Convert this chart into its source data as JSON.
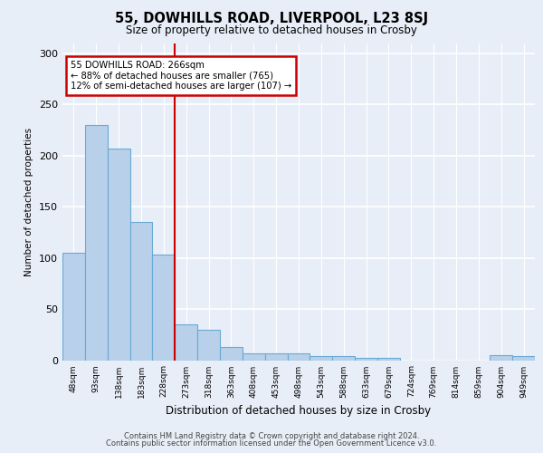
{
  "title1": "55, DOWHILLS ROAD, LIVERPOOL, L23 8SJ",
  "title2": "Size of property relative to detached houses in Crosby",
  "xlabel": "Distribution of detached houses by size in Crosby",
  "ylabel": "Number of detached properties",
  "footer1": "Contains HM Land Registry data © Crown copyright and database right 2024.",
  "footer2": "Contains public sector information licensed under the Open Government Licence v3.0.",
  "annotation_line1": "55 DOWHILLS ROAD: 266sqm",
  "annotation_line2": "← 88% of detached houses are smaller (765)",
  "annotation_line3": "12% of semi-detached houses are larger (107) →",
  "bar_labels": [
    "48sqm",
    "93sqm",
    "138sqm",
    "183sqm",
    "228sqm",
    "273sqm",
    "318sqm",
    "363sqm",
    "408sqm",
    "453sqm",
    "498sqm",
    "543sqm",
    "588sqm",
    "633sqm",
    "679sqm",
    "724sqm",
    "769sqm",
    "814sqm",
    "859sqm",
    "904sqm",
    "949sqm"
  ],
  "bar_values": [
    105,
    230,
    207,
    135,
    103,
    35,
    30,
    13,
    7,
    7,
    7,
    4,
    4,
    2,
    2,
    0,
    0,
    0,
    0,
    5,
    4
  ],
  "bar_color": "#b8d0ea",
  "bar_edge_color": "#6aaad4",
  "bar_width": 1.0,
  "red_line_x": 5.0,
  "red_line_color": "#cc0000",
  "annotation_box_color": "#ffffff",
  "annotation_box_edge_color": "#cc0000",
  "ylim": [
    0,
    310
  ],
  "yticks": [
    0,
    50,
    100,
    150,
    200,
    250,
    300
  ],
  "background_color": "#e8eef7",
  "plot_bg_color": "#e8eef7"
}
